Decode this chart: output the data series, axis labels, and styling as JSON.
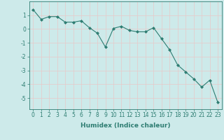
{
  "x": [
    0,
    1,
    2,
    3,
    4,
    5,
    6,
    7,
    8,
    9,
    10,
    11,
    12,
    13,
    14,
    15,
    16,
    17,
    18,
    19,
    20,
    21,
    22,
    23
  ],
  "y": [
    1.4,
    0.7,
    0.9,
    0.9,
    0.5,
    0.5,
    0.6,
    0.1,
    -0.3,
    -1.3,
    0.05,
    0.2,
    -0.1,
    -0.2,
    -0.2,
    0.1,
    -0.7,
    -1.5,
    -2.6,
    -3.1,
    -3.6,
    -4.2,
    -3.7,
    -5.3
  ],
  "line_color": "#2e7d72",
  "marker": "D",
  "marker_size": 2.0,
  "bg_color": "#cdeaea",
  "grid_color": "#e8c8c8",
  "xlabel": "Humidex (Indice chaleur)",
  "xlim": [
    -0.5,
    23.5
  ],
  "ylim": [
    -5.8,
    2.0
  ],
  "yticks": [
    1,
    0,
    -1,
    -2,
    -3,
    -4,
    -5
  ],
  "xticks": [
    0,
    1,
    2,
    3,
    4,
    5,
    6,
    7,
    8,
    9,
    10,
    11,
    12,
    13,
    14,
    15,
    16,
    17,
    18,
    19,
    20,
    21,
    22,
    23
  ],
  "xlabel_fontsize": 6.5,
  "tick_fontsize": 5.5,
  "tick_color": "#2e7d72",
  "spine_color": "#2e7d72"
}
